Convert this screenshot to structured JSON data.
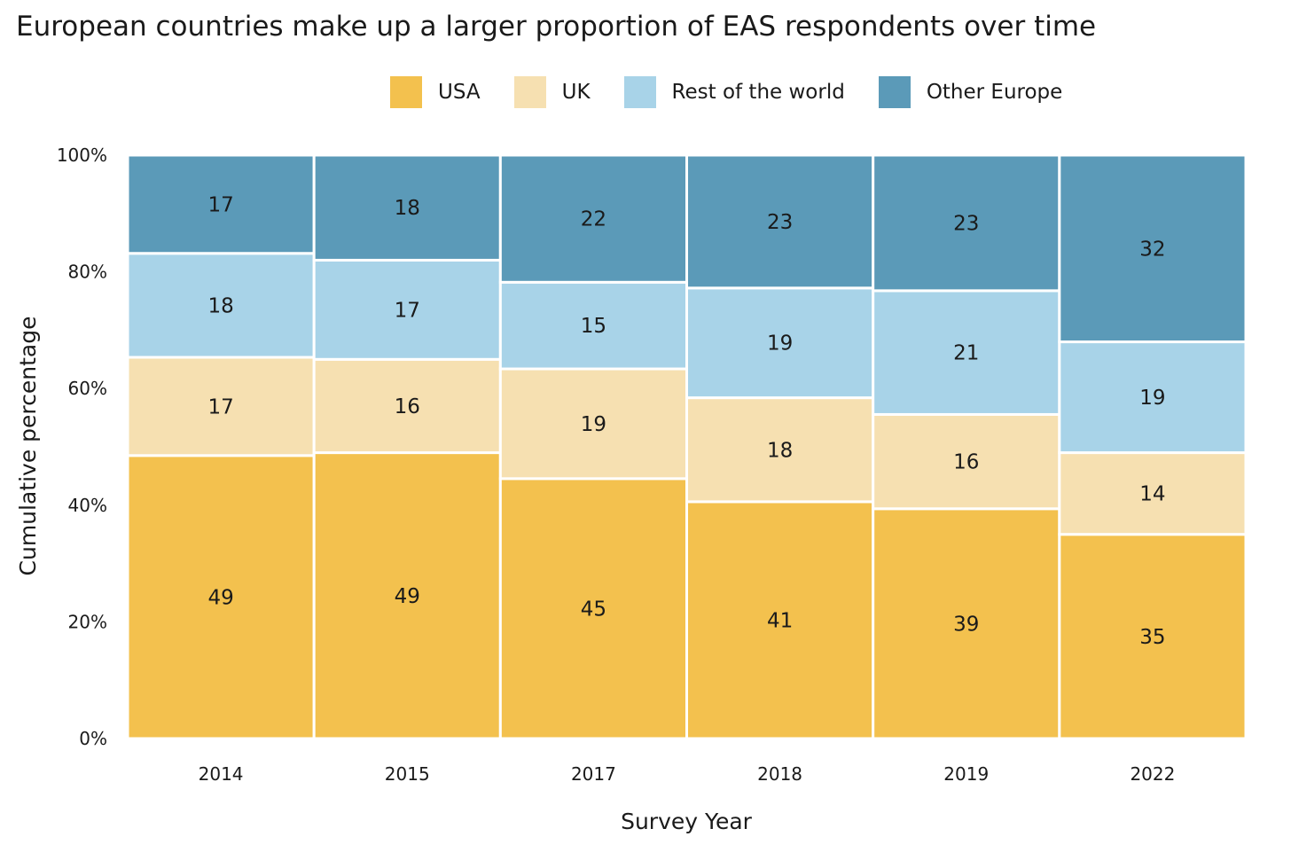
{
  "chart_data": {
    "type": "bar",
    "stacked": true,
    "normalized": true,
    "title": "European countries make up a larger proportion of EAS respondents over time",
    "xlabel": "Survey Year",
    "ylabel": "Cumulative percentage",
    "categories": [
      "2014",
      "2015",
      "2017",
      "2018",
      "2019",
      "2022"
    ],
    "y_ticks": [
      "0%",
      "20%",
      "40%",
      "60%",
      "80%",
      "100%"
    ],
    "ylim": [
      0,
      100
    ],
    "legend_position": "top",
    "grid": false,
    "series": [
      {
        "name": "USA",
        "color": "#f3c14e",
        "values": [
          49,
          49,
          45,
          41,
          39,
          35
        ]
      },
      {
        "name": "UK",
        "color": "#f6e0b1",
        "values": [
          17,
          16,
          19,
          18,
          16,
          14
        ]
      },
      {
        "name": "Rest of the world",
        "color": "#a8d3e8",
        "values": [
          18,
          17,
          15,
          19,
          21,
          19
        ]
      },
      {
        "name": "Other Europe",
        "color": "#5b9ab8",
        "values": [
          17,
          18,
          22,
          23,
          23,
          32
        ]
      }
    ]
  }
}
